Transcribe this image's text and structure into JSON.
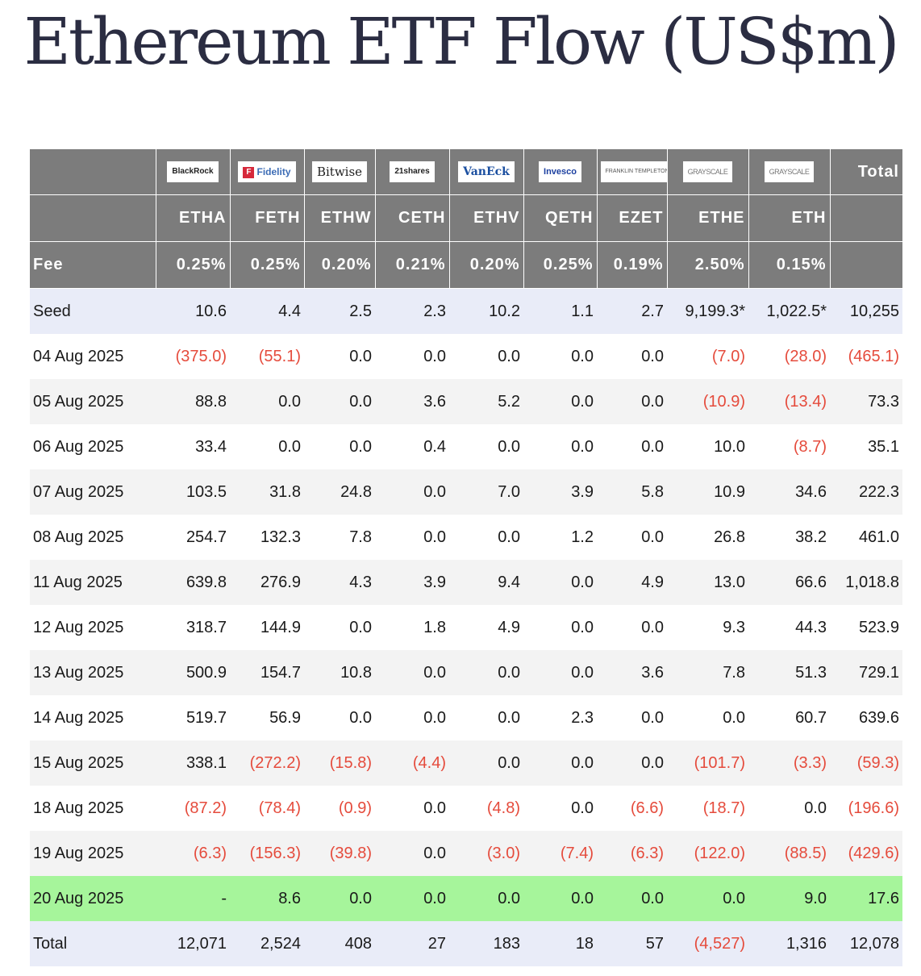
{
  "title": "Ethereum ETF Flow (US$m)",
  "header": {
    "total_label": "Total",
    "fee_label": "Fee",
    "logos": [
      {
        "icon": "blackrock-logo",
        "text": "BlackRock"
      },
      {
        "icon": "fidelity-logo",
        "text": "Fidelity"
      },
      {
        "icon": "bitwise-logo",
        "text": "Bitwise"
      },
      {
        "icon": "21shares-logo",
        "text": "21shares"
      },
      {
        "icon": "vaneck-logo",
        "text": "VanEck"
      },
      {
        "icon": "invesco-logo",
        "text": "Invesco"
      },
      {
        "icon": "franklin-templeton-logo",
        "text": "FRANKLIN TEMPLETON"
      },
      {
        "icon": "grayscale-logo",
        "text": "GRAYSCALE"
      },
      {
        "icon": "grayscale-logo",
        "text": "GRAYSCALE"
      }
    ],
    "tickers": [
      "ETHA",
      "FETH",
      "ETHW",
      "CETH",
      "ETHV",
      "QETH",
      "EZET",
      "ETHE",
      "ETH"
    ],
    "fees": [
      "0.25%",
      "0.25%",
      "0.20%",
      "0.21%",
      "0.20%",
      "0.25%",
      "0.19%",
      "2.50%",
      "0.15%"
    ]
  },
  "rows": [
    {
      "label": "Seed",
      "values": [
        "10.6",
        "4.4",
        "2.5",
        "2.3",
        "10.2",
        "1.1",
        "2.7",
        "9,199.3*",
        "1,022.5*",
        "10,255"
      ]
    },
    {
      "label": "04 Aug 2025",
      "values": [
        "(375.0)",
        "(55.1)",
        "0.0",
        "0.0",
        "0.0",
        "0.0",
        "0.0",
        "(7.0)",
        "(28.0)",
        "(465.1)"
      ]
    },
    {
      "label": "05 Aug 2025",
      "values": [
        "88.8",
        "0.0",
        "0.0",
        "3.6",
        "5.2",
        "0.0",
        "0.0",
        "(10.9)",
        "(13.4)",
        "73.3"
      ]
    },
    {
      "label": "06 Aug 2025",
      "values": [
        "33.4",
        "0.0",
        "0.0",
        "0.4",
        "0.0",
        "0.0",
        "0.0",
        "10.0",
        "(8.7)",
        "35.1"
      ]
    },
    {
      "label": "07 Aug 2025",
      "values": [
        "103.5",
        "31.8",
        "24.8",
        "0.0",
        "7.0",
        "3.9",
        "5.8",
        "10.9",
        "34.6",
        "222.3"
      ]
    },
    {
      "label": "08 Aug 2025",
      "values": [
        "254.7",
        "132.3",
        "7.8",
        "0.0",
        "0.0",
        "1.2",
        "0.0",
        "26.8",
        "38.2",
        "461.0"
      ]
    },
    {
      "label": "11 Aug 2025",
      "values": [
        "639.8",
        "276.9",
        "4.3",
        "3.9",
        "9.4",
        "0.0",
        "4.9",
        "13.0",
        "66.6",
        "1,018.8"
      ]
    },
    {
      "label": "12 Aug 2025",
      "values": [
        "318.7",
        "144.9",
        "0.0",
        "1.8",
        "4.9",
        "0.0",
        "0.0",
        "9.3",
        "44.3",
        "523.9"
      ]
    },
    {
      "label": "13 Aug 2025",
      "values": [
        "500.9",
        "154.7",
        "10.8",
        "0.0",
        "0.0",
        "0.0",
        "3.6",
        "7.8",
        "51.3",
        "729.1"
      ]
    },
    {
      "label": "14 Aug 2025",
      "values": [
        "519.7",
        "56.9",
        "0.0",
        "0.0",
        "0.0",
        "2.3",
        "0.0",
        "0.0",
        "60.7",
        "639.6"
      ]
    },
    {
      "label": "15 Aug 2025",
      "values": [
        "338.1",
        "(272.2)",
        "(15.8)",
        "(4.4)",
        "0.0",
        "0.0",
        "0.0",
        "(101.7)",
        "(3.3)",
        "(59.3)"
      ]
    },
    {
      "label": "18 Aug 2025",
      "values": [
        "(87.2)",
        "(78.4)",
        "(0.9)",
        "0.0",
        "(4.8)",
        "0.0",
        "(6.6)",
        "(18.7)",
        "0.0",
        "(196.6)"
      ]
    },
    {
      "label": "19 Aug 2025",
      "values": [
        "(6.3)",
        "(156.3)",
        "(39.8)",
        "0.0",
        "(3.0)",
        "(7.4)",
        "(6.3)",
        "(122.0)",
        "(88.5)",
        "(429.6)"
      ]
    },
    {
      "label": "20 Aug 2025",
      "values": [
        "-",
        "8.6",
        "0.0",
        "0.0",
        "0.0",
        "0.0",
        "0.0",
        "0.0",
        "9.0",
        "17.6"
      ]
    },
    {
      "label": "Total",
      "values": [
        "12,071",
        "2,524",
        "408",
        "27",
        "183",
        "18",
        "57",
        "(4,527)",
        "1,316",
        "12,078"
      ]
    }
  ],
  "colors": {
    "header_bg": "#7c7c7c",
    "negative": "#e54b3c",
    "highlight_row": "#a6f59b",
    "seed_total_row": "#e9ecf8",
    "alt_row": "#f3f3f3"
  }
}
